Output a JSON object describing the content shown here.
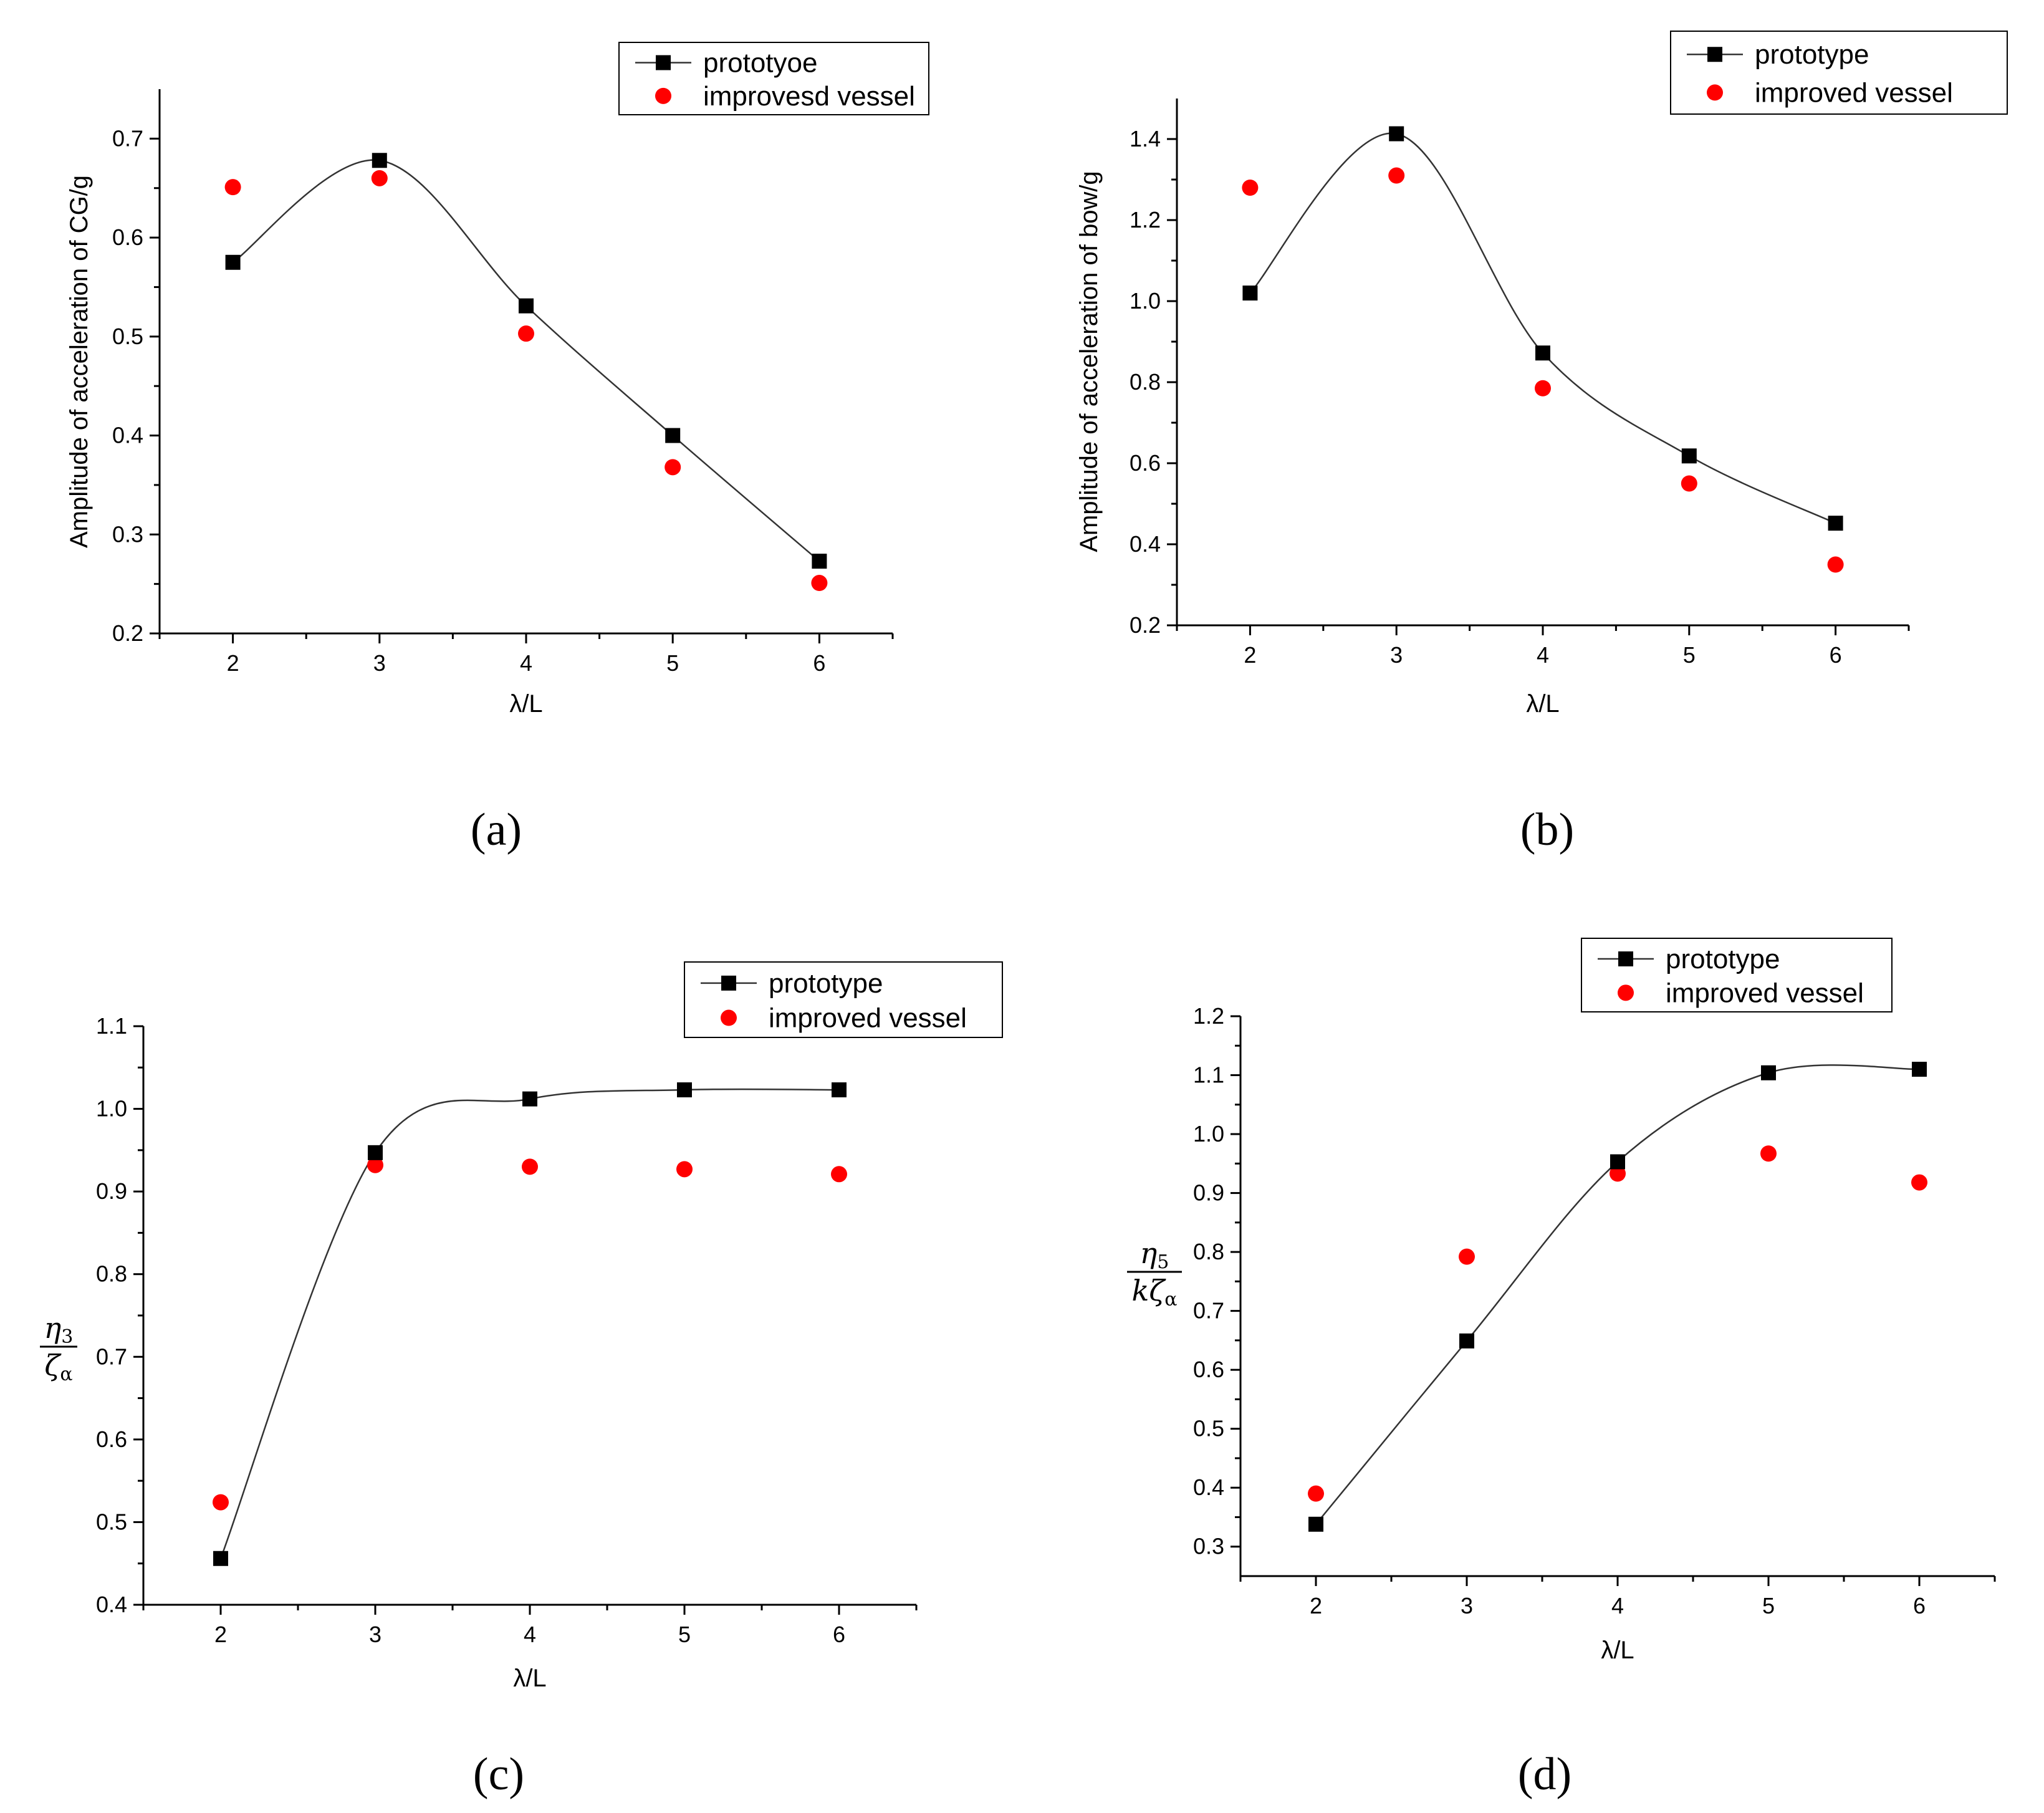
{
  "figure": {
    "colors": {
      "prototype": "#000000",
      "improved": "#ff0000",
      "axis": "#000000",
      "curve": "#333333"
    }
  },
  "chart_data": [
    {
      "type": "scatter",
      "panel_label": "(a)",
      "xlabel": "λ/L",
      "ylabel": "Amplitude of  acceleration of CG/g",
      "xlim": [
        1.5,
        6.5
      ],
      "ylim": [
        0.2,
        0.75
      ],
      "xticks": [
        2,
        3,
        4,
        5,
        6
      ],
      "yticks": [
        0.2,
        0.3,
        0.4,
        0.5,
        0.6,
        0.7
      ],
      "legend": {
        "position": "top-right",
        "entries": [
          "prototyoe",
          "improvesd vessel"
        ]
      },
      "series": [
        {
          "name": "prototyoe",
          "marker": "square",
          "line": "spline",
          "x": [
            2,
            3,
            4,
            5,
            6
          ],
          "values": [
            0.575,
            0.678,
            0.531,
            0.4,
            0.273
          ]
        },
        {
          "name": "improvesd vessel",
          "marker": "circle",
          "line": "none",
          "x": [
            2,
            3,
            4,
            5,
            6
          ],
          "values": [
            0.651,
            0.66,
            0.503,
            0.368,
            0.251
          ]
        }
      ]
    },
    {
      "type": "scatter",
      "panel_label": "(b)",
      "xlabel": "λ/L",
      "ylabel": "Amplitude of  acceleration of bow/g",
      "xlim": [
        1.5,
        6.5
      ],
      "ylim": [
        0.2,
        1.5
      ],
      "xticks": [
        2,
        3,
        4,
        5,
        6
      ],
      "yticks": [
        0.2,
        0.4,
        0.6,
        0.8,
        1.0,
        1.2,
        1.4
      ],
      "legend": {
        "position": "top-right",
        "entries": [
          "prototype",
          "improved vessel"
        ]
      },
      "series": [
        {
          "name": "prototype",
          "marker": "square",
          "line": "spline",
          "x": [
            2,
            3,
            4,
            5,
            6
          ],
          "values": [
            1.02,
            1.413,
            0.872,
            0.618,
            0.452
          ]
        },
        {
          "name": "improved vessel",
          "marker": "circle",
          "line": "none",
          "x": [
            2,
            3,
            4,
            5,
            6
          ],
          "values": [
            1.28,
            1.31,
            0.785,
            0.55,
            0.35
          ]
        }
      ]
    },
    {
      "type": "scatter",
      "panel_label": "(c)",
      "xlabel": "λ/L",
      "ylabel_num": "η",
      "ylabel_num_sub": "3",
      "ylabel_den": "ζ",
      "ylabel_den_sub": "α",
      "xlim": [
        1.5,
        6.5
      ],
      "ylim": [
        0.4,
        1.1
      ],
      "xticks": [
        2,
        3,
        4,
        5,
        6
      ],
      "yticks": [
        0.4,
        0.5,
        0.6,
        0.7,
        0.8,
        0.9,
        1.0,
        1.1
      ],
      "legend": {
        "position": "top-right",
        "entries": [
          "prototype",
          "improved vessel"
        ]
      },
      "series": [
        {
          "name": "prototype",
          "marker": "square",
          "line": "spline",
          "x": [
            2,
            3,
            4,
            5,
            6
          ],
          "values": [
            0.456,
            0.947,
            1.012,
            1.023,
            1.023
          ]
        },
        {
          "name": "improved vessel",
          "marker": "circle",
          "line": "none",
          "x": [
            2,
            3,
            4,
            5,
            6
          ],
          "values": [
            0.524,
            0.932,
            0.93,
            0.927,
            0.921
          ]
        }
      ]
    },
    {
      "type": "scatter",
      "panel_label": "(d)",
      "xlabel": "λ/L",
      "ylabel_num": "η",
      "ylabel_num_sub": "5",
      "ylabel_den": "kζ",
      "ylabel_den_sub": "α",
      "xlim": [
        1.5,
        6.5
      ],
      "ylim": [
        0.25,
        1.2
      ],
      "xticks": [
        2,
        3,
        4,
        5,
        6
      ],
      "yticks": [
        0.3,
        0.4,
        0.5,
        0.6,
        0.7,
        0.8,
        0.9,
        1.0,
        1.1,
        1.2
      ],
      "legend": {
        "position": "top-right",
        "entries": [
          "prototype",
          "improved vessel"
        ]
      },
      "series": [
        {
          "name": "prototype",
          "marker": "square",
          "line": "spline",
          "x": [
            2,
            3,
            4,
            5,
            6
          ],
          "values": [
            0.338,
            0.649,
            0.953,
            1.104,
            1.11
          ]
        },
        {
          "name": "improved vessel",
          "marker": "circle",
          "line": "none",
          "x": [
            2,
            3,
            4,
            5,
            6
          ],
          "values": [
            0.39,
            0.792,
            0.933,
            0.967,
            0.918
          ]
        }
      ]
    }
  ]
}
